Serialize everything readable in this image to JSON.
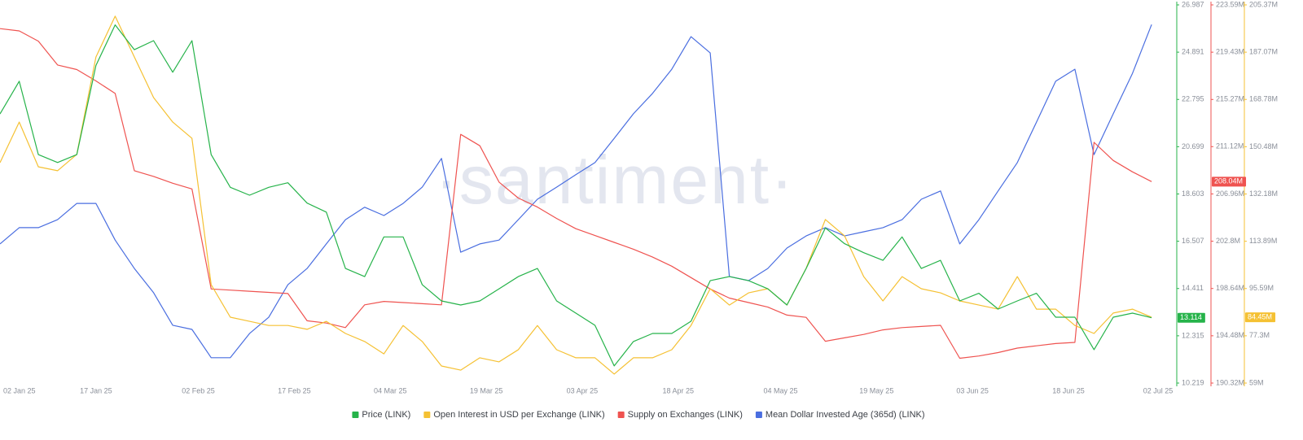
{
  "chart_data": {
    "type": "line",
    "watermark": "·santiment·",
    "x": [
      "02 Jan 25",
      "05 Jan 25",
      "08 Jan 25",
      "11 Jan 25",
      "14 Jan 25",
      "17 Jan 25",
      "20 Jan 25",
      "23 Jan 25",
      "26 Jan 25",
      "29 Jan 25",
      "01 Feb 25",
      "04 Feb 25",
      "07 Feb 25",
      "10 Feb 25",
      "13 Feb 25",
      "16 Feb 25",
      "19 Feb 25",
      "22 Feb 25",
      "25 Feb 25",
      "28 Feb 25",
      "03 Mar 25",
      "06 Mar 25",
      "09 Mar 25",
      "12 Mar 25",
      "15 Mar 25",
      "18 Mar 25",
      "21 Mar 25",
      "24 Mar 25",
      "27 Mar 25",
      "30 Mar 25",
      "02 Apr 25",
      "05 Apr 25",
      "08 Apr 25",
      "11 Apr 25",
      "14 Apr 25",
      "17 Apr 25",
      "20 Apr 25",
      "23 Apr 25",
      "26 Apr 25",
      "29 Apr 25",
      "02 May 25",
      "05 May 25",
      "08 May 25",
      "11 May 25",
      "14 May 25",
      "17 May 25",
      "20 May 25",
      "23 May 25",
      "26 May 25",
      "29 May 25",
      "01 Jun 25",
      "04 Jun 25",
      "07 Jun 25",
      "10 Jun 25",
      "13 Jun 25",
      "16 Jun 25",
      "19 Jun 25",
      "22 Jun 25",
      "25 Jun 25",
      "28 Jun 25",
      "01 Jul 25"
    ],
    "xlim": [
      "02 Jan 25",
      "02 Jul 25"
    ],
    "xticks": [
      "02 Jan 25",
      "17 Jan 25",
      "02 Feb 25",
      "17 Feb 25",
      "04 Mar 25",
      "19 Mar 25",
      "03 Apr 25",
      "18 Apr 25",
      "04 May 25",
      "19 May 25",
      "03 Jun 25",
      "18 Jun 25",
      "02 Jul 25"
    ],
    "ylim": [
      10.219,
      26.987
    ],
    "yticks": [
      10.219,
      12.315,
      14.411,
      16.507,
      18.603,
      20.699,
      22.795,
      24.891,
      26.987
    ],
    "y2lim": [
      190.32,
      223.59
    ],
    "y2ticks": [
      {
        "value": 190.32,
        "label": "190.32M"
      },
      {
        "value": 194.48,
        "label": "194.48M"
      },
      {
        "value": 198.64,
        "label": "198.64M"
      },
      {
        "value": 202.8,
        "label": "202.8M"
      },
      {
        "value": 206.96,
        "label": "206.96M"
      },
      {
        "value": 211.12,
        "label": "211.12M"
      },
      {
        "value": 215.27,
        "label": "215.27M"
      },
      {
        "value": 219.43,
        "label": "219.43M"
      },
      {
        "value": 223.59,
        "label": "223.59M"
      }
    ],
    "y3lim": [
      59,
      205.37
    ],
    "y3ticks": [
      {
        "value": 59,
        "label": "59M"
      },
      {
        "value": 77.3,
        "label": "77.3M"
      },
      {
        "value": 95.59,
        "label": "95.59M"
      },
      {
        "value": 113.89,
        "label": "113.89M"
      },
      {
        "value": 132.18,
        "label": "132.18M"
      },
      {
        "value": 150.48,
        "label": "150.48M"
      },
      {
        "value": 168.78,
        "label": "168.78M"
      },
      {
        "value": 187.07,
        "label": "187.07M"
      },
      {
        "value": 205.37,
        "label": "205.37M"
      }
    ],
    "y4lim": [
      0,
      100
    ],
    "series": [
      {
        "name": "Mean Dollar Invested Age (365d) (LINK)",
        "color": "#4a6ee0",
        "axis": "y4",
        "values": [
          36.8,
          41.1,
          41.1,
          43.2,
          47.5,
          47.5,
          37.8,
          30.3,
          23.9,
          15.3,
          14.2,
          6.7,
          6.7,
          13.1,
          17.4,
          26.0,
          30.3,
          36.8,
          43.2,
          46.5,
          44.3,
          47.5,
          51.8,
          59.4,
          34.6,
          36.8,
          37.8,
          43.2,
          48.6,
          51.8,
          55.1,
          58.3,
          64.7,
          71.2,
          76.6,
          83.0,
          91.6,
          87.3,
          28.2,
          27.1,
          30.3,
          35.7,
          38.9,
          41.1,
          38.9,
          40.0,
          41.1,
          43.2,
          48.6,
          50.8,
          36.8,
          43.2,
          50.8,
          58.3,
          69.0,
          79.8,
          83.0,
          60.4,
          71.2,
          81.9,
          94.8
        ]
      },
      {
        "name": "Supply on Exchanges (LINK)",
        "color": "#ef5350",
        "axis": "y2",
        "last_value_label": "208.04M",
        "values": [
          221.5,
          221.3,
          220.4,
          218.3,
          217.9,
          216.9,
          215.8,
          209.0,
          208.5,
          207.9,
          207.4,
          198.6,
          198.5,
          198.4,
          198.3,
          198.2,
          195.8,
          195.6,
          195.2,
          197.2,
          197.5,
          197.4,
          197.3,
          197.2,
          212.2,
          211.2,
          208.0,
          206.6,
          205.8,
          204.8,
          203.9,
          203.3,
          202.7,
          202.1,
          201.4,
          200.6,
          199.6,
          198.6,
          197.8,
          197.4,
          197.0,
          196.3,
          196.1,
          194.0,
          194.3,
          194.6,
          195.0,
          195.2,
          195.3,
          195.4,
          192.5,
          192.7,
          193.0,
          193.4,
          193.6,
          193.8,
          193.9,
          211.5,
          209.9,
          208.9,
          208.04
        ]
      },
      {
        "name": "Open Interest in USD per Exchange (LINK)",
        "color": "#f5c133",
        "axis": "y3",
        "last_value_label": "84.45M",
        "values": [
          144.3,
          160.0,
          142.7,
          141.2,
          147.5,
          185.2,
          201.0,
          185.2,
          169.5,
          160.0,
          153.7,
          97.1,
          84.5,
          82.9,
          81.3,
          81.3,
          79.8,
          82.9,
          78.2,
          75.1,
          70.3,
          81.3,
          75.1,
          65.6,
          64.0,
          68.8,
          67.2,
          71.9,
          81.3,
          71.9,
          68.8,
          68.8,
          62.5,
          68.8,
          68.8,
          71.9,
          81.3,
          95.5,
          89.2,
          93.9,
          95.5,
          89.2,
          103.4,
          122.3,
          116.0,
          100.2,
          90.8,
          100.2,
          95.5,
          93.9,
          90.8,
          89.2,
          87.6,
          100.2,
          87.6,
          87.6,
          81.3,
          78.2,
          86.1,
          87.6,
          84.45
        ]
      },
      {
        "name": "Price (LINK)",
        "color": "#26b34a",
        "axis": "y",
        "last_value_label": "13.114",
        "values": [
          22.15,
          23.6,
          20.35,
          20.0,
          20.35,
          24.3,
          26.1,
          25.0,
          25.4,
          24.0,
          25.4,
          20.35,
          18.9,
          18.55,
          18.9,
          19.1,
          18.2,
          17.8,
          15.3,
          14.94,
          16.7,
          16.7,
          14.58,
          13.86,
          13.68,
          13.86,
          14.4,
          14.94,
          15.3,
          13.86,
          13.32,
          12.78,
          10.98,
          12.06,
          12.42,
          12.42,
          12.96,
          14.76,
          14.94,
          14.76,
          14.4,
          13.68,
          15.3,
          17.1,
          16.4,
          16.0,
          15.66,
          16.7,
          15.3,
          15.66,
          13.86,
          14.2,
          13.5,
          13.86,
          14.2,
          13.14,
          13.14,
          11.7,
          13.14,
          13.32,
          13.114
        ]
      }
    ],
    "legend": "bottom"
  }
}
